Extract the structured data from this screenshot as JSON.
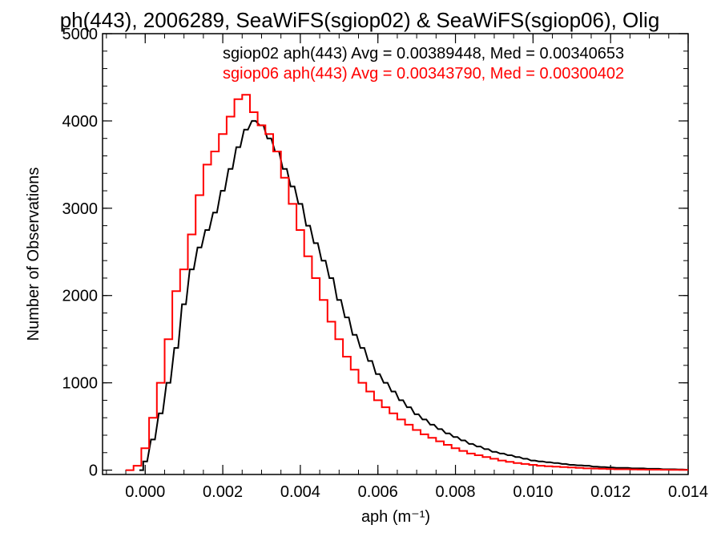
{
  "chart_data": {
    "type": "line",
    "title": "ph(443), 2006289, SeaWiFS(sgiop02) & SeaWiFS(sgiop06), Olig",
    "xlabel": "aph (m⁻¹)",
    "ylabel": "Number of Observations",
    "xlim": [
      -0.0011,
      0.014
    ],
    "ylim": [
      -50,
      5000
    ],
    "x_ticks": [
      0.0,
      0.002,
      0.004,
      0.006,
      0.008,
      0.01,
      0.012,
      0.014
    ],
    "x_tick_labels": [
      "0.000",
      "0.002",
      "0.004",
      "0.006",
      "0.008",
      "0.010",
      "0.012",
      "0.014"
    ],
    "y_ticks": [
      0,
      1000,
      2000,
      3000,
      4000,
      5000
    ],
    "y_tick_labels": [
      "0",
      "1000",
      "2000",
      "3000",
      "4000",
      "5000"
    ],
    "grid": false,
    "legend_position": "top-right",
    "series": [
      {
        "name": "sgiop02",
        "label": "sgiop02 aph(443) Avg = 0.00389448, Med = 0.00340653",
        "color": "#000000",
        "step": true,
        "x": [
          -0.0001,
          0.0,
          0.0002,
          0.0004,
          0.0006,
          0.0008,
          0.001,
          0.0012,
          0.0014,
          0.0016,
          0.0018,
          0.002,
          0.0022,
          0.0024,
          0.0026,
          0.0028,
          0.003,
          0.0032,
          0.0034,
          0.0036,
          0.0038,
          0.004,
          0.0042,
          0.0044,
          0.0046,
          0.0048,
          0.005,
          0.0052,
          0.0054,
          0.0056,
          0.0058,
          0.006,
          0.0062,
          0.0064,
          0.0066,
          0.0068,
          0.007,
          0.0072,
          0.0074,
          0.0076,
          0.0078,
          0.008,
          0.0082,
          0.0084,
          0.0086,
          0.0088,
          0.009,
          0.0092,
          0.0094,
          0.0096,
          0.0098,
          0.01,
          0.0102,
          0.0104,
          0.0106,
          0.0108,
          0.011,
          0.0112,
          0.0114,
          0.0116,
          0.0118,
          0.012,
          0.0122,
          0.0124,
          0.0126,
          0.0128,
          0.013,
          0.0132,
          0.0134,
          0.0136,
          0.0138,
          0.014
        ],
        "y": [
          0,
          100,
          350,
          650,
          1000,
          1400,
          1900,
          2300,
          2550,
          2750,
          2950,
          3200,
          3450,
          3700,
          3900,
          4000,
          3950,
          3800,
          3650,
          3450,
          3250,
          3050,
          2800,
          2600,
          2400,
          2200,
          1950,
          1750,
          1550,
          1400,
          1250,
          1100,
          1000,
          900,
          800,
          720,
          640,
          580,
          520,
          470,
          420,
          380,
          340,
          300,
          270,
          240,
          210,
          190,
          170,
          150,
          130,
          110,
          100,
          90,
          80,
          70,
          60,
          55,
          50,
          40,
          35,
          30,
          25,
          25,
          20,
          20,
          15,
          15,
          10,
          10,
          8,
          5
        ]
      },
      {
        "name": "sgiop06",
        "label": "sgiop06 aph(443) Avg = 0.00343790, Med = 0.00300402",
        "color": "#ff0000",
        "step": true,
        "x": [
          -0.0004,
          -0.0002,
          0.0,
          0.0002,
          0.0004,
          0.0006,
          0.0008,
          0.001,
          0.0012,
          0.0014,
          0.0016,
          0.0018,
          0.002,
          0.0022,
          0.0024,
          0.0026,
          0.0028,
          0.003,
          0.0032,
          0.0034,
          0.0036,
          0.0038,
          0.004,
          0.0042,
          0.0044,
          0.0046,
          0.0048,
          0.005,
          0.0052,
          0.0054,
          0.0056,
          0.0058,
          0.006,
          0.0062,
          0.0064,
          0.0066,
          0.0068,
          0.007,
          0.0072,
          0.0074,
          0.0076,
          0.0078,
          0.008,
          0.0082,
          0.0084,
          0.0086,
          0.0088,
          0.009,
          0.0092,
          0.0094,
          0.0096,
          0.0098,
          0.01,
          0.0102,
          0.0104,
          0.0106,
          0.0108,
          0.011,
          0.0112,
          0.0114,
          0.0116,
          0.0118,
          0.012,
          0.0122,
          0.0124,
          0.0126,
          0.0128,
          0.013,
          0.0132,
          0.0134,
          0.0136,
          0.0138,
          0.014
        ],
        "y": [
          0,
          50,
          250,
          600,
          1000,
          1500,
          2050,
          2300,
          2700,
          3150,
          3500,
          3650,
          3850,
          4050,
          4250,
          4300,
          4100,
          3950,
          3850,
          3650,
          3350,
          3050,
          2750,
          2450,
          2200,
          1950,
          1700,
          1500,
          1300,
          1150,
          1000,
          900,
          800,
          720,
          650,
          580,
          520,
          460,
          410,
          370,
          330,
          290,
          250,
          220,
          190,
          170,
          150,
          130,
          110,
          95,
          80,
          70,
          60,
          50,
          45,
          40,
          35,
          30,
          25,
          20,
          18,
          15,
          12,
          10,
          10,
          8,
          6,
          5,
          5,
          4,
          3,
          3,
          2
        ]
      }
    ]
  }
}
